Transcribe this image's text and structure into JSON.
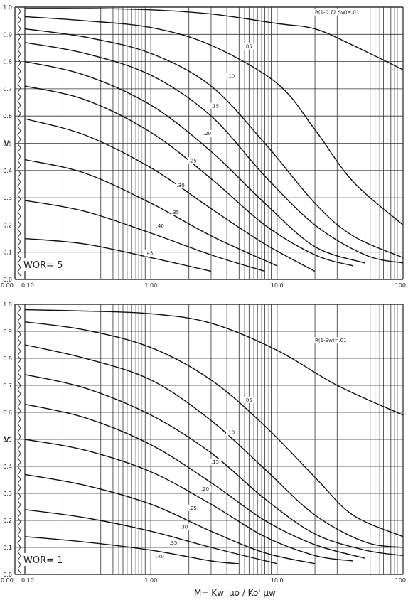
{
  "chart_data": [
    {
      "type": "line",
      "scale": "semilog-x",
      "ylabel": "V",
      "xlim": [
        0.1,
        100
      ],
      "ylim": [
        0.0,
        1.0
      ],
      "x_tick_labels": [
        "0.10",
        "1.00",
        "10.0",
        "100"
      ],
      "y_tick_labels": [
        "0.0",
        "0.1",
        "0.2",
        "0.3",
        "0.4",
        "0.5",
        "0.6",
        "0.7",
        "0.8",
        "0.9",
        "1.0"
      ],
      "x_origin_label": "0.00",
      "annotation": "WOR= 5",
      "grid": true,
      "series": [
        {
          "name": "R(1-0.72 Sw)=.01",
          "points": [
            [
              0.1,
              0.995
            ],
            [
              0.3,
              0.995
            ],
            [
              1,
              0.99
            ],
            [
              3,
              0.975
            ],
            [
              10,
              0.94
            ],
            [
              20,
              0.92
            ],
            [
              40,
              0.86
            ],
            [
              100,
              0.77
            ]
          ]
        },
        {
          "name": ".05",
          "points": [
            [
              0.1,
              0.965
            ],
            [
              0.3,
              0.95
            ],
            [
              1,
              0.925
            ],
            [
              3,
              0.86
            ],
            [
              10,
              0.72
            ],
            [
              20,
              0.55
            ],
            [
              40,
              0.36
            ],
            [
              100,
              0.2
            ]
          ]
        },
        {
          "name": ".10",
          "points": [
            [
              0.1,
              0.92
            ],
            [
              0.3,
              0.89
            ],
            [
              1,
              0.83
            ],
            [
              3,
              0.71
            ],
            [
              8,
              0.5
            ],
            [
              20,
              0.28
            ],
            [
              40,
              0.16
            ],
            [
              100,
              0.08
            ]
          ]
        },
        {
          "name": ".15",
          "points": [
            [
              0.1,
              0.87
            ],
            [
              0.3,
              0.83
            ],
            [
              1,
              0.75
            ],
            [
              3,
              0.6
            ],
            [
              8,
              0.38
            ],
            [
              20,
              0.2
            ],
            [
              50,
              0.09
            ],
            [
              100,
              0.06
            ]
          ]
        },
        {
          "name": ".20",
          "points": [
            [
              0.1,
              0.8
            ],
            [
              0.3,
              0.75
            ],
            [
              1,
              0.64
            ],
            [
              3,
              0.47
            ],
            [
              8,
              0.28
            ],
            [
              20,
              0.12
            ],
            [
              50,
              0.06
            ]
          ]
        },
        {
          "name": ".25",
          "points": [
            [
              0.1,
              0.71
            ],
            [
              0.3,
              0.66
            ],
            [
              1,
              0.54
            ],
            [
              3,
              0.37
            ],
            [
              8,
              0.2
            ],
            [
              20,
              0.09
            ],
            [
              40,
              0.05
            ]
          ]
        },
        {
          "name": ".30",
          "points": [
            [
              0.1,
              0.59
            ],
            [
              0.3,
              0.53
            ],
            [
              1,
              0.41
            ],
            [
              3,
              0.26
            ],
            [
              8,
              0.13
            ],
            [
              20,
              0.03
            ]
          ]
        },
        {
          "name": ".35",
          "points": [
            [
              0.1,
              0.44
            ],
            [
              0.3,
              0.39
            ],
            [
              1,
              0.28
            ],
            [
              3,
              0.16
            ],
            [
              10,
              0.05
            ]
          ]
        },
        {
          "name": ".40",
          "points": [
            [
              0.1,
              0.29
            ],
            [
              0.3,
              0.25
            ],
            [
              1,
              0.17
            ],
            [
              3,
              0.09
            ],
            [
              8,
              0.03
            ]
          ]
        },
        {
          "name": ".45",
          "points": [
            [
              0.1,
              0.15
            ],
            [
              0.3,
              0.13
            ],
            [
              1,
              0.08
            ],
            [
              3,
              0.03
            ]
          ]
        }
      ],
      "curve_labels": [
        {
          "text": "R(1-0.72 Sw)=.01",
          "x": 20,
          "y": 0.975
        },
        {
          "text": ".05",
          "x": 5.5,
          "y": 0.85
        },
        {
          "text": ".10",
          "x": 4.0,
          "y": 0.74
        },
        {
          "text": ".15",
          "x": 3.0,
          "y": 0.63
        },
        {
          "text": ".20",
          "x": 2.6,
          "y": 0.53
        },
        {
          "text": ".25",
          "x": 2.0,
          "y": 0.43
        },
        {
          "text": ".30",
          "x": 1.6,
          "y": 0.34
        },
        {
          "text": ".35",
          "x": 1.45,
          "y": 0.24
        },
        {
          "text": ".40",
          "x": 1.1,
          "y": 0.19
        },
        {
          "text": ".45",
          "x": 0.9,
          "y": 0.09
        }
      ]
    },
    {
      "type": "line",
      "scale": "semilog-x",
      "ylabel": "V",
      "xlabel": "M= Kw' μo / Ko' μw",
      "xlim": [
        0.1,
        100
      ],
      "ylim": [
        0.0,
        1.0
      ],
      "x_tick_labels": [
        "0.10",
        "1.00",
        "10.0",
        "100"
      ],
      "y_tick_labels": [
        "0.0",
        "0.1",
        "0.2",
        "0.3",
        "0.4",
        "0.5",
        "0.6",
        "0.7",
        "0.8",
        "0.9",
        "1.0"
      ],
      "x_origin_label": "0.00",
      "annotation": "WOR= 1",
      "grid": true,
      "series": [
        {
          "name": "R(1-Sw)=.01",
          "points": [
            [
              0.1,
              0.98
            ],
            [
              0.3,
              0.975
            ],
            [
              1,
              0.965
            ],
            [
              3,
              0.93
            ],
            [
              10,
              0.83
            ],
            [
              30,
              0.7
            ],
            [
              100,
              0.59
            ]
          ]
        },
        {
          "name": ".05",
          "points": [
            [
              0.1,
              0.935
            ],
            [
              0.3,
              0.905
            ],
            [
              1,
              0.84
            ],
            [
              3,
              0.72
            ],
            [
              8,
              0.55
            ],
            [
              20,
              0.36
            ],
            [
              40,
              0.22
            ],
            [
              100,
              0.14
            ]
          ]
        },
        {
          "name": ".10",
          "points": [
            [
              0.1,
              0.85
            ],
            [
              0.3,
              0.8
            ],
            [
              1,
              0.72
            ],
            [
              3,
              0.57
            ],
            [
              8,
              0.39
            ],
            [
              20,
              0.22
            ],
            [
              50,
              0.12
            ],
            [
              100,
              0.1
            ]
          ]
        },
        {
          "name": ".15",
          "points": [
            [
              0.1,
              0.74
            ],
            [
              0.3,
              0.69
            ],
            [
              1,
              0.59
            ],
            [
              3,
              0.45
            ],
            [
              8,
              0.28
            ],
            [
              20,
              0.15
            ],
            [
              50,
              0.09
            ],
            [
              100,
              0.07
            ]
          ]
        },
        {
          "name": ".20",
          "points": [
            [
              0.1,
              0.63
            ],
            [
              0.3,
              0.58
            ],
            [
              1,
              0.48
            ],
            [
              3,
              0.34
            ],
            [
              8,
              0.2
            ],
            [
              20,
              0.11
            ],
            [
              50,
              0.06
            ]
          ]
        },
        {
          "name": ".25",
          "points": [
            [
              0.1,
              0.5
            ],
            [
              0.3,
              0.46
            ],
            [
              1,
              0.38
            ],
            [
              3,
              0.26
            ],
            [
              8,
              0.14
            ],
            [
              20,
              0.07
            ],
            [
              40,
              0.05
            ]
          ]
        },
        {
          "name": ".30",
          "points": [
            [
              0.1,
              0.37
            ],
            [
              0.3,
              0.33
            ],
            [
              1,
              0.26
            ],
            [
              3,
              0.16
            ],
            [
              8,
              0.08
            ],
            [
              20,
              0.04
            ]
          ]
        },
        {
          "name": ".35",
          "points": [
            [
              0.1,
              0.24
            ],
            [
              0.3,
              0.21
            ],
            [
              1,
              0.16
            ],
            [
              3,
              0.1
            ],
            [
              10,
              0.04
            ]
          ]
        },
        {
          "name": ".40",
          "points": [
            [
              0.1,
              0.14
            ],
            [
              0.3,
              0.12
            ],
            [
              1,
              0.09
            ],
            [
              3,
              0.05
            ],
            [
              5,
              0.04
            ]
          ]
        }
      ],
      "curve_labels": [
        {
          "text": "R(1-Sw)=.01",
          "x": 20,
          "y": 0.86
        },
        {
          "text": ".05",
          "x": 5.5,
          "y": 0.64
        },
        {
          "text": ".10",
          "x": 4.0,
          "y": 0.52
        },
        {
          "text": ".15",
          "x": 3.0,
          "y": 0.41
        },
        {
          "text": ".20",
          "x": 2.5,
          "y": 0.31
        },
        {
          "text": ".25",
          "x": 2.0,
          "y": 0.24
        },
        {
          "text": ".30",
          "x": 1.7,
          "y": 0.17
        },
        {
          "text": ".35",
          "x": 1.4,
          "y": 0.11
        },
        {
          "text": ".40",
          "x": 1.1,
          "y": 0.06
        }
      ]
    }
  ]
}
